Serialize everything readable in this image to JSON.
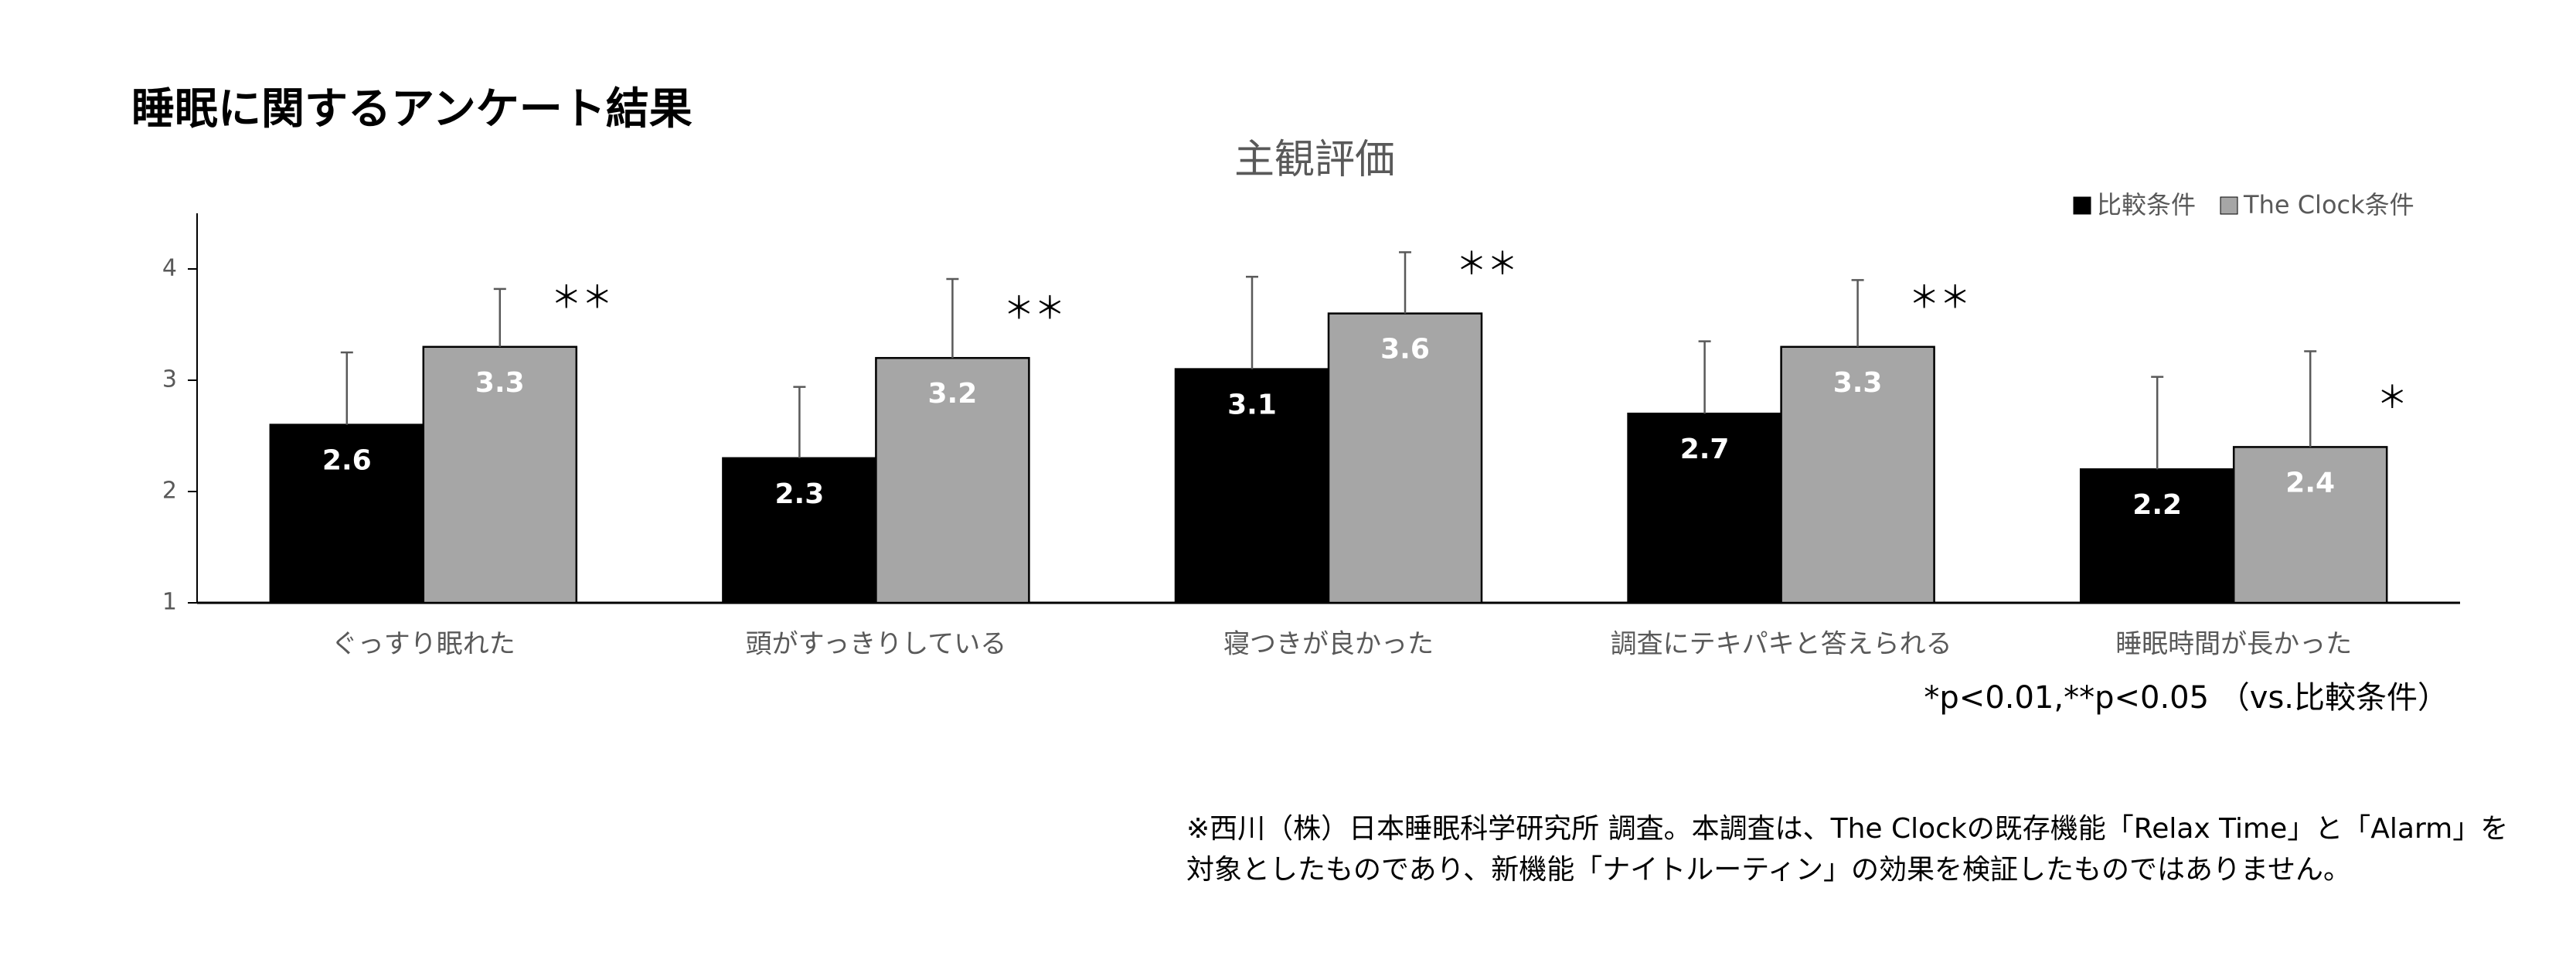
{
  "chart_data": {
    "type": "bar",
    "page_title": "睡眠に関するアンケート結果",
    "title": "主観評価",
    "categories": [
      "ぐっすり眠れた",
      "頭がすっきりしている",
      "寝つきが良かった",
      "調査にテキパキと答えられる",
      "睡眠時間が長かった"
    ],
    "series": [
      {
        "name": "比較条件",
        "color": "#000000",
        "label_color": "#ffffff",
        "values": [
          2.6,
          2.3,
          3.1,
          2.7,
          2.2
        ],
        "errors": [
          0.65,
          0.64,
          0.83,
          0.65,
          0.83
        ]
      },
      {
        "name": "The Clock条件",
        "color": "#a6a6a6",
        "label_color": "#ffffff",
        "values": [
          3.3,
          3.2,
          3.6,
          3.3,
          2.4
        ],
        "errors": [
          0.52,
          0.71,
          0.55,
          0.6,
          0.86
        ],
        "significance": [
          "＊＊",
          "＊＊",
          "＊＊",
          "＊＊",
          "＊"
        ]
      }
    ],
    "ylim": [
      1,
      4.5
    ],
    "yticks": [
      1,
      2,
      3,
      4
    ],
    "legend_position": "top-right",
    "significance_note": "*p<0.01,**p<0.05 （vs.比較条件）",
    "notes": [
      "※西川（株）日本睡眠科学研究所 調査。本調査は、The Clockの既存機能「Relax Time」と「Alarm」を",
      "対象としたものであり、新機能「ナイトルーティン」の効果を検証したものではありません。"
    ]
  }
}
